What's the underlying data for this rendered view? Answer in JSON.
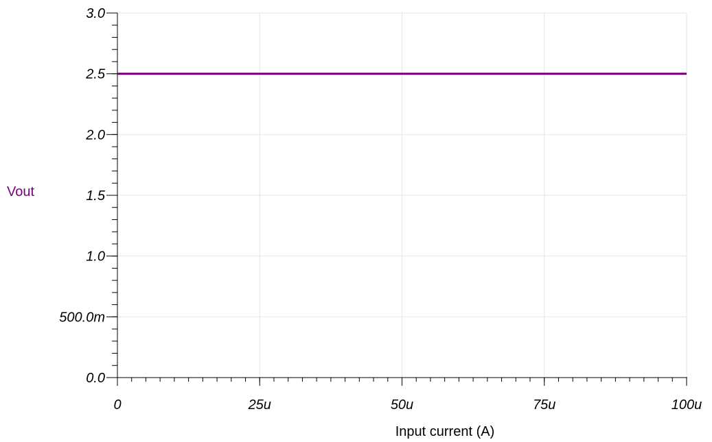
{
  "chart_data": {
    "type": "line",
    "xlabel": "Input current (A)",
    "ylabel": "",
    "xlim": [
      0,
      0.0001
    ],
    "ylim": [
      0,
      3.0
    ],
    "x_ticks": [
      {
        "value": 0,
        "label": "0"
      },
      {
        "value": 2.5e-05,
        "label": "25u"
      },
      {
        "value": 5e-05,
        "label": "50u"
      },
      {
        "value": 7.5e-05,
        "label": "75u"
      },
      {
        "value": 0.0001,
        "label": "100u"
      }
    ],
    "y_ticks": [
      {
        "value": 0.0,
        "label": "0.0"
      },
      {
        "value": 0.5,
        "label": "500.0m"
      },
      {
        "value": 1.0,
        "label": "1.0"
      },
      {
        "value": 1.5,
        "label": "1.5"
      },
      {
        "value": 2.0,
        "label": "2.0"
      },
      {
        "value": 2.5,
        "label": "2.5"
      },
      {
        "value": 3.0,
        "label": "3.0"
      }
    ],
    "grid": true,
    "series": [
      {
        "name": "Vout",
        "color": "#7a0080",
        "x": [
          0,
          0.0001
        ],
        "y": [
          2.5,
          2.5
        ]
      }
    ]
  }
}
